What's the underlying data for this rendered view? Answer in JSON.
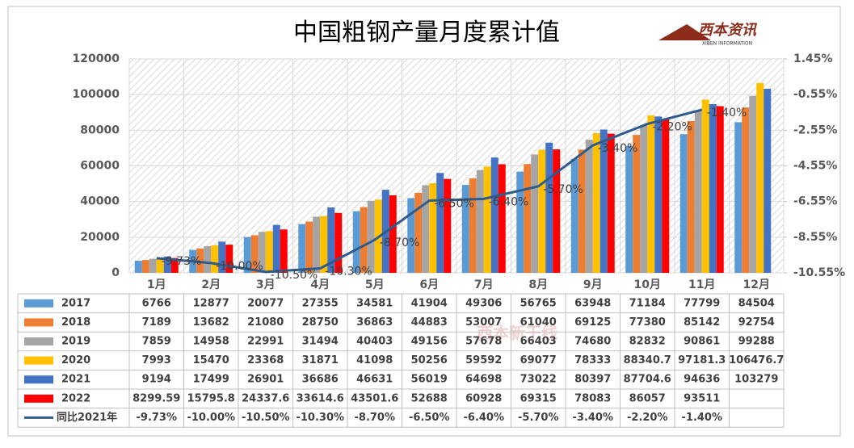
{
  "chart_data": {
    "type": "bar_line_table",
    "title": "中国粗钢产量月度累计值",
    "logo": "西本资讯",
    "logo_sub": "XIBEN INFORMATION",
    "watermark": "西本新干线",
    "categories": [
      "1月",
      "2月",
      "3月",
      "4月",
      "5月",
      "6月",
      "7月",
      "8月",
      "9月",
      "10月",
      "11月",
      "12月"
    ],
    "series": [
      {
        "name": "2017",
        "color": "#5b9bd5",
        "values": [
          6766,
          12877,
          20077,
          27355,
          34581,
          41904,
          49306,
          56765,
          63948,
          71184,
          77799,
          84504
        ]
      },
      {
        "name": "2018",
        "color": "#ed7d31",
        "values": [
          7189,
          13682,
          21080,
          28750,
          36863,
          44883,
          53007,
          61040,
          69125,
          77380,
          85142,
          92754
        ]
      },
      {
        "name": "2019",
        "color": "#a5a5a5",
        "values": [
          7859,
          14958,
          22991,
          31494,
          40403,
          49156,
          57678,
          66403,
          74680,
          82832,
          90861,
          99288
        ]
      },
      {
        "name": "2020",
        "color": "#ffc000",
        "values": [
          7993,
          15470,
          23368,
          31871,
          41098,
          50256,
          59592,
          69077,
          78333,
          88340.7,
          97181.3,
          106476.7
        ]
      },
      {
        "name": "2021",
        "color": "#4472c4",
        "values": [
          9194,
          17499,
          26901,
          36686,
          46631,
          56019,
          64698,
          73022,
          80397,
          87704.6,
          94636,
          103279
        ]
      },
      {
        "name": "2022",
        "color": "#ff0000",
        "values": [
          8299.59,
          15795.8,
          24337.6,
          33614.6,
          43501.6,
          52688,
          60928,
          69315,
          78083,
          86057,
          93511,
          null
        ]
      },
      {
        "name": "同比2021年",
        "color": "#2f5b8c",
        "axis": "y2",
        "line": true,
        "values": [
          -9.73,
          -10.0,
          -10.5,
          -10.3,
          -8.7,
          -6.5,
          -6.4,
          -5.7,
          -3.4,
          -2.2,
          -1.4,
          null
        ],
        "value_labels": [
          "-9.73%",
          "-10.00%",
          "-10.50%",
          "-10.30%",
          "-8.70%",
          "-6.50%",
          "-6.40%",
          "-5.70%",
          "-3.40%",
          "-2.20%",
          "-1.40%",
          null
        ]
      }
    ],
    "ylim": [
      0,
      120000
    ],
    "yticks": [
      0,
      20000,
      40000,
      60000,
      80000,
      100000,
      120000
    ],
    "y2lim": [
      -10.55,
      1.45
    ],
    "y2ticks": [
      {
        "value": -10.55,
        "label": "-10.55%"
      },
      {
        "value": -8.55,
        "label": "-8.55%"
      },
      {
        "value": -6.55,
        "label": "-6.55%"
      },
      {
        "value": -4.55,
        "label": "-4.55%"
      },
      {
        "value": -2.55,
        "label": "-2.55%"
      },
      {
        "value": -0.55,
        "label": "-0.55%"
      },
      {
        "value": 1.45,
        "label": "1.45%"
      }
    ]
  }
}
